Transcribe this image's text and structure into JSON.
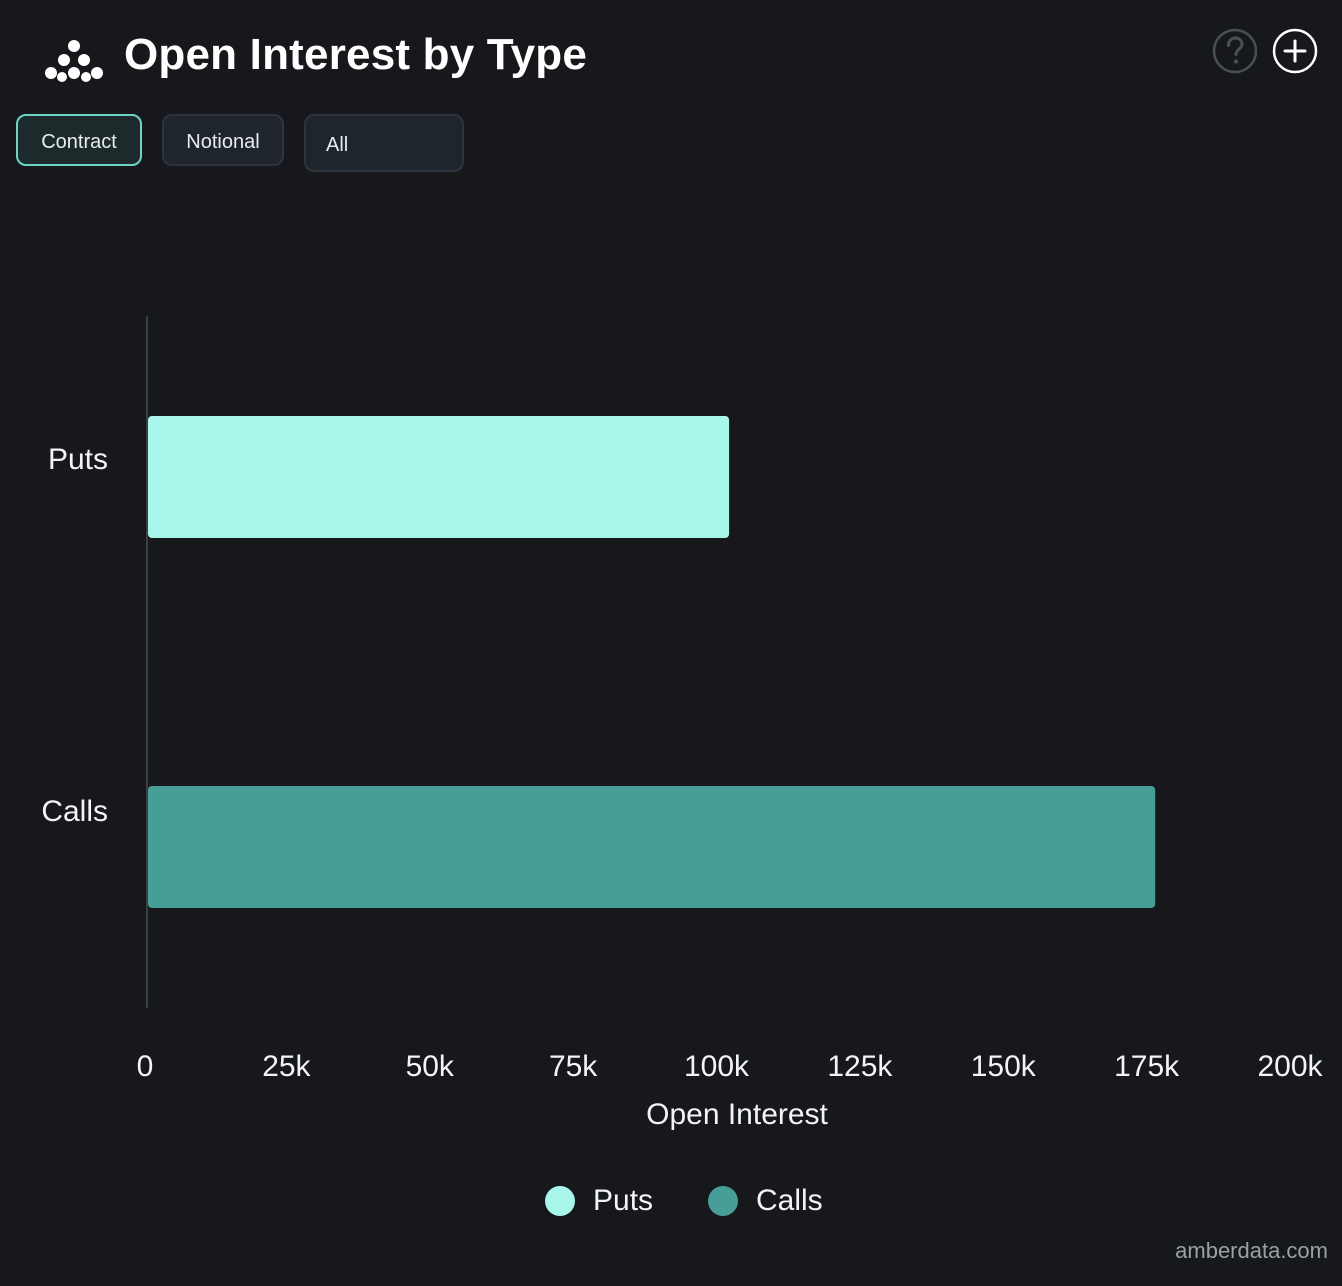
{
  "header": {
    "title": "Open Interest by Type",
    "logo_icon": "amberdata-logo-icon",
    "help_icon": "question-circle-icon",
    "add_icon": "plus-circle-icon"
  },
  "toggles": {
    "items": [
      {
        "label": "Contract",
        "active": true
      },
      {
        "label": "Notional",
        "active": false
      },
      {
        "label": "All",
        "active": false
      }
    ]
  },
  "chart_data": {
    "type": "bar",
    "orientation": "horizontal",
    "categories": [
      "Puts",
      "Calls"
    ],
    "series": [
      {
        "name": "Puts",
        "color": "#a8f7ea",
        "values": [
          101500,
          null
        ]
      },
      {
        "name": "Calls",
        "color": "#479e98",
        "values": [
          null,
          175800
        ]
      }
    ],
    "xlabel": "Open Interest",
    "ylabel": "",
    "xlim": [
      0,
      200000
    ],
    "xticks": [
      "0",
      "25k",
      "50k",
      "75k",
      "100k",
      "125k",
      "150k",
      "175k",
      "200k"
    ],
    "grid": false,
    "legend_position": "bottom-center"
  },
  "legend": {
    "items": [
      {
        "label": "Puts",
        "color": "#a8f7ea"
      },
      {
        "label": "Calls",
        "color": "#479e98"
      }
    ]
  },
  "watermark": "amberdata.com"
}
